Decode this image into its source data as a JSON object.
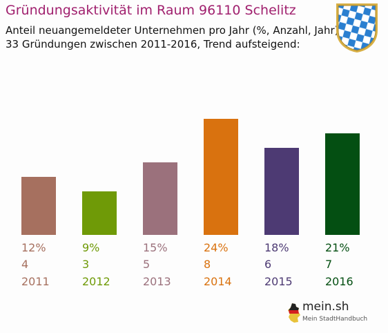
{
  "header": {
    "title": "Gründungsaktivität im Raum 96110 Schelitz",
    "subtitle_line1": "Anteil neuangemeldeter Unternehmen pro Jahr (%, Anzahl, Jahr)",
    "subtitle_line2": "33 Gründungen zwischen 2011-2016, Trend aufsteigend:"
  },
  "crest": {
    "icon": "bavaria-coat-of-arms-icon",
    "colors": [
      "#2a7fd0",
      "#ffffff",
      "#d8b046"
    ]
  },
  "logo": {
    "main_text": "mein.sh",
    "sub_text": "Mein StadtHandbuch"
  },
  "chart_data": {
    "type": "bar",
    "categories": [
      "2011",
      "2012",
      "2013",
      "2014",
      "2015",
      "2016"
    ],
    "values": [
      12,
      9,
      15,
      24,
      18,
      21
    ],
    "percent_labels": [
      "12%",
      "9%",
      "15%",
      "24%",
      "18%",
      "21%"
    ],
    "counts": [
      4,
      3,
      5,
      8,
      6,
      7
    ],
    "colors": [
      "#a6705f",
      "#6f9a07",
      "#9b717c",
      "#d9720f",
      "#4d3a73",
      "#044f12"
    ],
    "title": "Gründungsaktivität im Raum 96110 Schelitz",
    "xlabel": "",
    "ylabel": "",
    "ylim": [
      0,
      24
    ],
    "grid": false,
    "legend": "none"
  }
}
